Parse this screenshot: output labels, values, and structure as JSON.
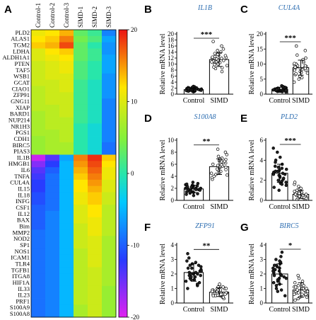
{
  "heatmap": {
    "letter": "A",
    "columns": [
      "Control-1",
      "Control-2",
      "Control-3",
      "SIMD-1",
      "SIMD-2",
      "SIMD-3"
    ],
    "rows": [
      "PLD2",
      "ALAS1",
      "TGM2",
      "LDHA",
      "ALDH1A1",
      "PTEN",
      "TAF5",
      "WSB1",
      "GCAT",
      "CIAO1",
      "ZFP91",
      "GNG11",
      "XIAP",
      "BARD1",
      "NUP214",
      "NR1H3",
      "PGS1",
      "CDH1",
      "BIRC5",
      "PIAS3",
      "IL1B",
      "HMGB1",
      "IL6",
      "TNFA",
      "CUL4A",
      "IL15",
      "IL18",
      "INFG",
      "CSF1",
      "IL12",
      "BAX",
      "Bim",
      "MMP2",
      "NOD2",
      "SP1",
      "NOS1",
      "ICAM1",
      "TLR4",
      "TGFB1",
      "ITGA8",
      "HIF1A",
      "IL33",
      "IL23",
      "PRF1",
      "S100A9",
      "S100A8"
    ],
    "colorbar_ticks": [
      "20",
      "10",
      "0",
      "-10",
      "-20"
    ],
    "colorbar_range": [
      -20,
      20
    ]
  },
  "chart_data": [
    {
      "type": "heatmap",
      "columns": [
        "Control-1",
        "Control-2",
        "Control-3",
        "SIMD-1",
        "SIMD-2",
        "SIMD-3"
      ],
      "rows": [
        "PLD2",
        "ALAS1",
        "TGM2",
        "LDHA",
        "ALDH1A1",
        "PTEN",
        "TAF5",
        "WSB1",
        "GCAT",
        "CIAO1",
        "ZFP91",
        "GNG11",
        "XIAP",
        "BARD1",
        "NUP214",
        "NR1H3",
        "PGS1",
        "CDH1",
        "BIRC5",
        "PIAS3",
        "IL1B",
        "HMGB1",
        "IL6",
        "TNFA",
        "CUL4A",
        "IL15",
        "IL18",
        "INFG",
        "CSF1",
        "IL12",
        "BAX",
        "Bim",
        "MMP2",
        "NOD2",
        "SP1",
        "NOS1",
        "ICAM1",
        "TLR4",
        "TGFB1",
        "ITGA8",
        "HIF1A",
        "IL33",
        "IL23",
        "PRF1",
        "S100A9",
        "S100A8"
      ],
      "values": [
        [
          11,
          12,
          14,
          3,
          1,
          -8
        ],
        [
          12,
          13,
          16,
          4,
          2,
          -6
        ],
        [
          13,
          14,
          18,
          3,
          0,
          -7
        ],
        [
          10,
          12,
          13,
          3,
          1,
          -7
        ],
        [
          10,
          11,
          12,
          3,
          1,
          -6
        ],
        [
          9,
          10,
          11,
          2,
          0,
          -6
        ],
        [
          9,
          10,
          11,
          2,
          0,
          -6
        ],
        [
          9,
          10,
          10,
          2,
          0,
          -7
        ],
        [
          9,
          9,
          10,
          1,
          -1,
          -7
        ],
        [
          8,
          9,
          10,
          1,
          -1,
          -7
        ],
        [
          8,
          9,
          9,
          1,
          -1,
          -7
        ],
        [
          8,
          9,
          9,
          1,
          -1,
          -8
        ],
        [
          8,
          8,
          9,
          1,
          -1,
          -8
        ],
        [
          7,
          8,
          9,
          1,
          -1,
          -8
        ],
        [
          7,
          8,
          8,
          1,
          -1,
          -8
        ],
        [
          7,
          8,
          8,
          0,
          -2,
          -8
        ],
        [
          7,
          7,
          8,
          0,
          -2,
          -8
        ],
        [
          6,
          7,
          8,
          0,
          -2,
          -8
        ],
        [
          6,
          7,
          7,
          0,
          -2,
          -9
        ],
        [
          6,
          7,
          7,
          0,
          -2,
          -9
        ],
        [
          -19,
          -14,
          -6,
          16,
          19,
          13
        ],
        [
          -16,
          -12,
          -5,
          15,
          18,
          12
        ],
        [
          -14,
          -10,
          -5,
          14,
          17,
          11
        ],
        [
          -13,
          -9,
          -5,
          13,
          16,
          11
        ],
        [
          -12,
          -9,
          -5,
          12,
          15,
          10
        ],
        [
          -12,
          -9,
          -5,
          12,
          14,
          10
        ],
        [
          -11,
          -9,
          -5,
          11,
          13,
          9
        ],
        [
          -11,
          -9,
          -5,
          11,
          13,
          9
        ],
        [
          -10,
          -9,
          -5,
          10,
          12,
          8
        ],
        [
          -10,
          -8,
          -5,
          10,
          12,
          8
        ],
        [
          -10,
          -8,
          -5,
          10,
          11,
          8
        ],
        [
          -10,
          -8,
          -5,
          9,
          11,
          8
        ],
        [
          -9,
          -8,
          -5,
          9,
          11,
          8
        ],
        [
          -9,
          -8,
          -5,
          9,
          10,
          7
        ],
        [
          -9,
          -8,
          -5,
          9,
          10,
          7
        ],
        [
          -9,
          -8,
          -5,
          8,
          10,
          7
        ],
        [
          -9,
          -8,
          -5,
          8,
          10,
          7
        ],
        [
          -9,
          -8,
          -5,
          8,
          10,
          7
        ],
        [
          -9,
          -8,
          -5,
          8,
          9,
          7
        ],
        [
          -9,
          -8,
          -5,
          8,
          9,
          7
        ],
        [
          -9,
          -8,
          -5,
          8,
          9,
          7
        ],
        [
          -9,
          -8,
          -5,
          8,
          9,
          6
        ],
        [
          -9,
          -8,
          -5,
          8,
          9,
          6
        ],
        [
          -9,
          -8,
          -5,
          8,
          9,
          6
        ],
        [
          -9,
          -8,
          -5,
          7,
          9,
          6
        ],
        [
          -9,
          -8,
          -5,
          7,
          9,
          6
        ]
      ],
      "colorbar_range": [
        -20,
        20
      ],
      "colorbar_ticks": [
        20,
        10,
        0,
        -10,
        -20
      ]
    },
    {
      "type": "bar",
      "panel": "B",
      "title": "IL1B",
      "ylabel": "Relative mRNA level",
      "categories": [
        "Control",
        "SIMD"
      ],
      "values": [
        1.5,
        11.5
      ],
      "errors": [
        0.6,
        2.3
      ],
      "ylim": [
        0,
        20
      ],
      "yticks": [
        0,
        2,
        4,
        6,
        8,
        10,
        12,
        14,
        16,
        18,
        20
      ],
      "significance": "***",
      "points": {
        "Control": [
          0.8,
          1.0,
          1.1,
          1.2,
          1.3,
          1.3,
          1.4,
          1.4,
          1.5,
          1.5,
          1.6,
          1.6,
          1.7,
          1.8,
          1.9,
          2.0,
          2.1,
          2.2,
          2.4,
          2.6,
          1.0,
          1.2,
          1.5,
          1.7,
          1.9,
          0.9,
          1.3,
          1.8,
          2.3,
          1.1
        ],
        "SIMD": [
          7.5,
          8.5,
          9.0,
          9.5,
          10.0,
          10.2,
          10.5,
          10.8,
          11.0,
          11.2,
          11.5,
          11.7,
          12.0,
          12.2,
          12.5,
          12.8,
          13.0,
          13.5,
          14.0,
          14.5,
          15.0,
          16.0,
          17.5,
          9.8,
          11.3,
          12.3,
          10.7,
          13.2,
          8.8,
          11.9
        ]
      }
    },
    {
      "type": "bar",
      "panel": "C",
      "title": "CUL4A",
      "ylabel": "Relative mRNA level",
      "categories": [
        "Control",
        "SIMD"
      ],
      "values": [
        1.6,
        8.8
      ],
      "errors": [
        0.7,
        2.5
      ],
      "ylim": [
        0,
        20
      ],
      "yticks": [
        0,
        5,
        10,
        15,
        20
      ],
      "significance": "***",
      "points": {
        "Control": [
          0.7,
          0.9,
          1.0,
          1.1,
          1.2,
          1.3,
          1.4,
          1.5,
          1.5,
          1.6,
          1.6,
          1.7,
          1.8,
          1.9,
          2.0,
          2.1,
          2.2,
          2.3,
          2.5,
          2.8,
          1.0,
          1.4,
          1.7,
          2.0,
          1.2,
          1.8,
          0.8,
          2.4,
          1.5,
          1.3
        ],
        "SIMD": [
          4.0,
          5.0,
          5.5,
          6.0,
          6.5,
          7.0,
          7.5,
          8.0,
          8.2,
          8.5,
          8.8,
          9.0,
          9.2,
          9.5,
          9.8,
          10.0,
          10.5,
          11.0,
          11.5,
          12.0,
          13.0,
          14.5,
          16.0,
          8.0,
          9.0,
          10.2,
          7.2,
          8.6,
          9.4,
          6.8
        ]
      }
    },
    {
      "type": "bar",
      "panel": "D",
      "title": "S100A8",
      "ylabel": "Relative mRNA level",
      "categories": [
        "Control",
        "SIMD"
      ],
      "values": [
        1.9,
        5.6
      ],
      "errors": [
        0.6,
        1.3
      ],
      "ylim": [
        0,
        10
      ],
      "yticks": [
        0,
        2,
        4,
        6,
        8,
        10
      ],
      "significance": "**",
      "points": {
        "Control": [
          0.8,
          1.0,
          1.2,
          1.3,
          1.4,
          1.5,
          1.6,
          1.7,
          1.8,
          1.9,
          1.9,
          2.0,
          2.0,
          2.1,
          2.2,
          2.3,
          2.4,
          2.5,
          2.6,
          2.8,
          3.0,
          1.1,
          1.6,
          2.0,
          2.4,
          1.8,
          1.4,
          2.2,
          2.7,
          1.7
        ],
        "SIMD": [
          3.5,
          3.8,
          4.0,
          4.3,
          4.5,
          4.8,
          5.0,
          5.2,
          5.4,
          5.5,
          5.6,
          5.8,
          6.0,
          6.2,
          6.4,
          6.6,
          6.8,
          7.0,
          7.3,
          7.6,
          8.0,
          8.5,
          4.6,
          5.7,
          6.3,
          5.1,
          6.9,
          4.2,
          5.9,
          6.5
        ]
      }
    },
    {
      "type": "bar",
      "panel": "E",
      "title": "PLD2",
      "ylabel": "Relative mRNA level",
      "categories": [
        "Control",
        "SIMD"
      ],
      "values": [
        2.7,
        0.6
      ],
      "errors": [
        0.9,
        0.4
      ],
      "ylim": [
        0,
        6
      ],
      "yticks": [
        0,
        2,
        4,
        6
      ],
      "significance": "***",
      "points": {
        "Control": [
          1.0,
          1.3,
          1.5,
          1.7,
          1.9,
          2.0,
          2.1,
          2.2,
          2.4,
          2.5,
          2.6,
          2.7,
          2.8,
          2.9,
          3.0,
          3.1,
          3.2,
          3.4,
          3.6,
          3.8,
          4.0,
          4.3,
          4.8,
          5.2,
          1.8,
          2.3,
          2.6,
          3.3,
          2.9,
          1.6
        ],
        "SIMD": [
          0.1,
          0.2,
          0.2,
          0.3,
          0.3,
          0.4,
          0.4,
          0.5,
          0.5,
          0.6,
          0.6,
          0.7,
          0.7,
          0.8,
          0.9,
          1.0,
          1.1,
          1.2,
          1.4,
          1.6,
          1.8,
          0.3,
          0.5,
          0.8,
          0.2,
          0.6,
          0.4,
          1.0,
          0.7,
          0.9
        ]
      }
    },
    {
      "type": "bar",
      "panel": "F",
      "title": "ZFP91",
      "ylabel": "Relative mRNA level",
      "categories": [
        "Control",
        "SIMD"
      ],
      "values": [
        2.1,
        0.75
      ],
      "errors": [
        0.6,
        0.3
      ],
      "ylim": [
        0,
        4
      ],
      "yticks": [
        0,
        1,
        2,
        3,
        4
      ],
      "significance": "**",
      "points": {
        "Control": [
          1.0,
          1.2,
          1.4,
          1.5,
          1.6,
          1.7,
          1.8,
          1.9,
          2.0,
          2.0,
          2.1,
          2.1,
          2.2,
          2.3,
          2.4,
          2.5,
          2.6,
          2.7,
          2.9,
          3.1,
          3.4,
          1.3,
          1.8,
          2.2,
          2.6,
          1.6,
          2.0,
          2.4,
          1.9,
          2.8
        ],
        "SIMD": [
          0.3,
          0.4,
          0.5,
          0.5,
          0.6,
          0.6,
          0.7,
          0.7,
          0.8,
          0.8,
          0.8,
          0.9,
          0.9,
          1.0,
          1.0,
          1.1,
          1.2,
          1.3,
          0.6,
          0.7,
          0.9,
          0.5,
          0.8,
          1.0,
          0.4,
          0.7,
          0.9,
          0.6,
          1.1,
          0.8
        ]
      }
    },
    {
      "type": "bar",
      "panel": "G",
      "title": "BIRC5",
      "ylabel": "Relative mRNA level",
      "categories": [
        "Control",
        "SIMD"
      ],
      "values": [
        2.0,
        0.9
      ],
      "errors": [
        0.7,
        0.5
      ],
      "ylim": [
        0,
        4
      ],
      "yticks": [
        0,
        1,
        2,
        3,
        4
      ],
      "significance": "*",
      "points": {
        "Control": [
          0.5,
          0.8,
          1.0,
          1.2,
          1.4,
          1.5,
          1.6,
          1.7,
          1.8,
          1.9,
          2.0,
          2.1,
          2.2,
          2.3,
          2.4,
          2.5,
          2.6,
          2.7,
          2.8,
          3.0,
          3.2,
          3.5,
          1.3,
          1.9,
          2.4,
          2.9,
          1.7,
          2.2,
          0.9,
          2.6
        ],
        "SIMD": [
          0.2,
          0.3,
          0.4,
          0.5,
          0.5,
          0.6,
          0.7,
          0.7,
          0.8,
          0.8,
          0.9,
          0.9,
          1.0,
          1.0,
          1.1,
          1.2,
          1.3,
          1.4,
          1.5,
          1.7,
          1.9,
          0.4,
          0.6,
          0.8,
          1.0,
          1.2,
          0.6,
          0.9,
          1.1,
          0.7
        ]
      }
    }
  ]
}
